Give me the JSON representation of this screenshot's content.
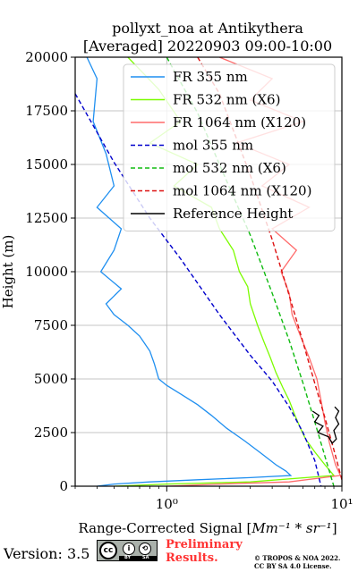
{
  "chart_data": {
    "type": "line",
    "title_line1": "pollyxt_noa at Antikythera",
    "title_line2": "[Averaged] 20220903 09:00-10:00",
    "xlabel_prefix": "Range-Corrected Signal [",
    "xlabel_units": "Mm⁻¹ * sr⁻¹",
    "xlabel_suffix": "]",
    "ylabel": "Height (m)",
    "x_scale": "log",
    "xlim": [
      0.3,
      10
    ],
    "ylim": [
      0,
      20000
    ],
    "x_ticks": [
      {
        "value": 1,
        "label": "10⁰"
      },
      {
        "value": 10,
        "label": "10¹"
      }
    ],
    "y_ticks": [
      0,
      2500,
      5000,
      7500,
      10000,
      12500,
      15000,
      17500,
      20000
    ],
    "y_tick_labels": [
      "0",
      "2500",
      "5000",
      "7500",
      "10000",
      "12500",
      "15000",
      "17500",
      "20000"
    ],
    "grid": true,
    "legend_position": "top-right",
    "series": [
      {
        "name": "FR 355 nm",
        "color": "#1f8ff0",
        "style": "solid",
        "points": [
          [
            0.35,
            20000
          ],
          [
            0.4,
            19000
          ],
          [
            0.38,
            17000
          ],
          [
            0.45,
            15500
          ],
          [
            0.5,
            14000
          ],
          [
            0.4,
            13000
          ],
          [
            0.55,
            12000
          ],
          [
            0.5,
            11000
          ],
          [
            0.42,
            10000
          ],
          [
            0.55,
            9200
          ],
          [
            0.45,
            8500
          ],
          [
            0.5,
            8000
          ],
          [
            0.6,
            7500
          ],
          [
            0.7,
            7000
          ],
          [
            0.8,
            6300
          ],
          [
            0.85,
            5700
          ],
          [
            0.9,
            5000
          ],
          [
            1.0,
            4700
          ],
          [
            1.2,
            4300
          ],
          [
            1.5,
            3800
          ],
          [
            1.8,
            3300
          ],
          [
            2.2,
            2700
          ],
          [
            2.8,
            2100
          ],
          [
            3.5,
            1500
          ],
          [
            4.2,
            1000
          ],
          [
            4.8,
            700
          ],
          [
            5.1,
            500
          ],
          [
            3.0,
            400
          ],
          [
            1.5,
            300
          ],
          [
            0.8,
            200
          ],
          [
            0.5,
            100
          ],
          [
            0.4,
            0
          ]
        ]
      },
      {
        "name": "FR 532 nm (X6)",
        "color": "#7cfc00",
        "style": "solid",
        "points": [
          [
            0.6,
            20000
          ],
          [
            0.9,
            18500
          ],
          [
            1.2,
            17000
          ],
          [
            0.8,
            16000
          ],
          [
            1.5,
            15000
          ],
          [
            1.1,
            14000
          ],
          [
            1.8,
            13000
          ],
          [
            2.0,
            12000
          ],
          [
            2.4,
            11000
          ],
          [
            2.6,
            10000
          ],
          [
            2.9,
            9300
          ],
          [
            3.0,
            8500
          ],
          [
            3.3,
            7500
          ],
          [
            3.6,
            6700
          ],
          [
            3.9,
            6000
          ],
          [
            4.2,
            5300
          ],
          [
            4.6,
            4600
          ],
          [
            5.0,
            4000
          ],
          [
            5.4,
            3300
          ],
          [
            5.8,
            2700
          ],
          [
            6.2,
            2200
          ],
          [
            7.0,
            1600
          ],
          [
            8.0,
            1000
          ],
          [
            9.0,
            500
          ],
          [
            3.0,
            200
          ],
          [
            1.0,
            100
          ],
          [
            0.5,
            0
          ]
        ]
      },
      {
        "name": "FR 1064 nm (X120)",
        "color": "#ff6b6b",
        "style": "solid",
        "points": [
          [
            2.0,
            20000
          ],
          [
            4.0,
            19000
          ],
          [
            3.0,
            18000
          ],
          [
            6.0,
            17000
          ],
          [
            2.5,
            16000
          ],
          [
            5.0,
            15000
          ],
          [
            3.5,
            14000
          ],
          [
            6.5,
            13000
          ],
          [
            4.0,
            12000
          ],
          [
            5.5,
            11000
          ],
          [
            4.5,
            10000
          ],
          [
            5.0,
            9000
          ],
          [
            5.2,
            8000
          ],
          [
            5.8,
            7000
          ],
          [
            6.5,
            6000
          ],
          [
            7.2,
            5000
          ],
          [
            7.6,
            4000
          ],
          [
            8.0,
            3000
          ],
          [
            8.5,
            2000
          ],
          [
            9.2,
            1000
          ],
          [
            9.8,
            500
          ],
          [
            5.0,
            200
          ],
          [
            2.0,
            100
          ],
          [
            1.0,
            0
          ]
        ]
      },
      {
        "name": "mol 355 nm",
        "color": "#0000cc",
        "style": "dashed",
        "points": [
          [
            0.3,
            18300
          ],
          [
            0.5,
            15100
          ],
          [
            0.8,
            12500
          ],
          [
            1.2,
            10600
          ],
          [
            2.0,
            8000
          ],
          [
            3.0,
            6100
          ],
          [
            4.0,
            4900
          ],
          [
            5.0,
            3700
          ],
          [
            6.0,
            2500
          ],
          [
            7.0,
            1200
          ],
          [
            7.6,
            0
          ]
        ]
      },
      {
        "name": "mol 532 nm (X6)",
        "color": "#11bb11",
        "style": "dashed",
        "points": [
          [
            1.0,
            20000
          ],
          [
            1.5,
            17400
          ],
          [
            2.0,
            15000
          ],
          [
            3.0,
            11700
          ],
          [
            4.0,
            9000
          ],
          [
            5.0,
            6800
          ],
          [
            6.0,
            4800
          ],
          [
            7.0,
            3000
          ],
          [
            8.0,
            1400
          ],
          [
            9.0,
            0
          ]
        ]
      },
      {
        "name": "mol 1064 nm (X120)",
        "color": "#dd1111",
        "style": "dashed",
        "points": [
          [
            1.5,
            20000
          ],
          [
            2.0,
            18300
          ],
          [
            3.0,
            14500
          ],
          [
            4.0,
            11500
          ],
          [
            5.0,
            8900
          ],
          [
            6.0,
            6700
          ],
          [
            7.0,
            4800
          ],
          [
            8.0,
            3200
          ],
          [
            9.0,
            1700
          ],
          [
            10.0,
            300
          ]
        ]
      },
      {
        "name": "Reference Height",
        "color": "#000000",
        "style": "solid",
        "points": [
          [
            6.8,
            3500
          ],
          [
            7.4,
            3300
          ],
          [
            7.0,
            3000
          ],
          [
            7.8,
            2800
          ],
          [
            7.3,
            2500
          ],
          [
            8.4,
            2300
          ],
          [
            8.8,
            2000
          ],
          [
            9.3,
            2200
          ],
          [
            9.0,
            2600
          ],
          [
            9.6,
            2900
          ],
          [
            9.2,
            3200
          ],
          [
            9.6,
            3500
          ],
          [
            9.1,
            3700
          ]
        ]
      }
    ]
  },
  "footer": {
    "version": "Version: 3.5",
    "license_badge": "cc-by-sa-badge",
    "badge_cc": "cc",
    "badge_by": "BY",
    "badge_sa": "SA",
    "preliminary_line1": "Preliminary",
    "preliminary_line2": "Results.",
    "copyright_line1": "© TROPOS & NOA 2022.",
    "copyright_line2": "CC BY SA 4.0 License."
  }
}
